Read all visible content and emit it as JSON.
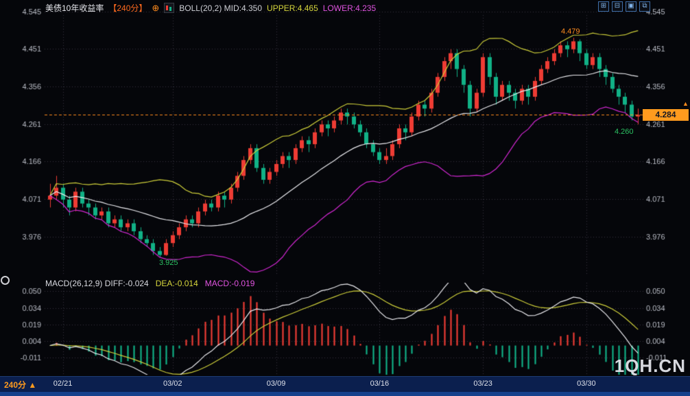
{
  "title_bar": {
    "symbol": "美债10年收益率",
    "period_badge": "【240分】",
    "expand_icon": "⊕",
    "boll": "BOLL(20,2) MID:4.350",
    "upper": "UPPER:4.465",
    "lower": "LOWER:4.235"
  },
  "window_controls": {
    "icons": [
      "⊞",
      "⊟",
      "▣",
      "⧉"
    ]
  },
  "macd_header": {
    "main": "MACD(26,12,9) DIFF:-0.024",
    "dea": "DEA:-0.014",
    "macd": "MACD:-0.019"
  },
  "annotations": {
    "peak": "4.479",
    "trough": "3.925",
    "recent_low": "4.260",
    "last_price": "4.284",
    "arrow_up": "▲"
  },
  "bottom_bar": {
    "period": "240分 ▲"
  },
  "watermark": {
    "text": "1QH.CN"
  },
  "colors": {
    "up": "#ee3c34",
    "down": "#11b186",
    "boll_upper": "#cfd03a",
    "boll_mid": "#ececf0",
    "boll_lower": "#d428d4",
    "diff_line": "#ececf0",
    "dea_line": "#cfd03a",
    "hist_up": "#ee3c34",
    "hist_down": "#11b186",
    "accent": "#ff8c1e",
    "axis_text": "#b9bcc5",
    "grid": "#363640"
  },
  "chart_data": {
    "type": "candlestick+macd",
    "title": "美债10年收益率 240分",
    "main_panel": {
      "ytick_labels": [
        "4.545",
        "4.451",
        "4.356",
        "4.261",
        "4.166",
        "4.071",
        "3.976"
      ],
      "ylim": [
        3.88,
        4.545
      ],
      "boll": {
        "period": 20,
        "k": 2,
        "mid": 4.35,
        "upper": 4.465,
        "lower": 4.235
      },
      "last_price": 4.284,
      "period_high": 4.479,
      "period_low": 3.925,
      "recent_low": 4.26,
      "candles_ohlc": [
        [
          4.07,
          4.11,
          4.05,
          4.08
        ],
        [
          4.08,
          4.13,
          4.07,
          4.1
        ],
        [
          4.1,
          4.11,
          4.05,
          4.07
        ],
        [
          4.07,
          4.08,
          4.03,
          4.05
        ],
        [
          4.05,
          4.1,
          4.04,
          4.09
        ],
        [
          4.09,
          4.1,
          4.05,
          4.06
        ],
        [
          4.06,
          4.07,
          4.03,
          4.05
        ],
        [
          4.05,
          4.06,
          4.02,
          4.03
        ],
        [
          4.03,
          4.05,
          4.02,
          4.04
        ],
        [
          4.04,
          4.05,
          4.0,
          4.01
        ],
        [
          4.01,
          4.03,
          4.0,
          4.02
        ],
        [
          4.02,
          4.03,
          3.99,
          4.0
        ],
        [
          4.0,
          4.02,
          3.99,
          4.01
        ],
        [
          4.01,
          4.02,
          3.98,
          3.99
        ],
        [
          3.99,
          4.0,
          3.96,
          3.97
        ],
        [
          3.97,
          3.98,
          3.95,
          3.96
        ],
        [
          3.96,
          3.97,
          3.93,
          3.94
        ],
        [
          3.94,
          3.95,
          3.925,
          3.93
        ],
        [
          3.93,
          3.97,
          3.928,
          3.96
        ],
        [
          3.96,
          3.99,
          3.95,
          3.98
        ],
        [
          3.98,
          4.01,
          3.97,
          4.0
        ],
        [
          4.0,
          4.03,
          3.99,
          4.02
        ],
        [
          4.02,
          4.03,
          4.0,
          4.01
        ],
        [
          4.01,
          4.05,
          4.0,
          4.04
        ],
        [
          4.04,
          4.07,
          4.03,
          4.06
        ],
        [
          4.06,
          4.07,
          4.04,
          4.05
        ],
        [
          4.05,
          4.09,
          4.04,
          4.08
        ],
        [
          4.08,
          4.09,
          4.05,
          4.07
        ],
        [
          4.07,
          4.11,
          4.06,
          4.1
        ],
        [
          4.1,
          4.14,
          4.09,
          4.13
        ],
        [
          4.13,
          4.18,
          4.12,
          4.17
        ],
        [
          4.17,
          4.21,
          4.16,
          4.2
        ],
        [
          4.2,
          4.21,
          4.14,
          4.15
        ],
        [
          4.15,
          4.16,
          4.11,
          4.12
        ],
        [
          4.12,
          4.15,
          4.11,
          4.14
        ],
        [
          4.14,
          4.17,
          4.13,
          4.16
        ],
        [
          4.16,
          4.19,
          4.15,
          4.18
        ],
        [
          4.18,
          4.19,
          4.15,
          4.17
        ],
        [
          4.17,
          4.21,
          4.16,
          4.2
        ],
        [
          4.2,
          4.23,
          4.19,
          4.22
        ],
        [
          4.22,
          4.23,
          4.19,
          4.21
        ],
        [
          4.21,
          4.25,
          4.2,
          4.24
        ],
        [
          4.24,
          4.27,
          4.23,
          4.26
        ],
        [
          4.26,
          4.27,
          4.23,
          4.25
        ],
        [
          4.25,
          4.28,
          4.24,
          4.27
        ],
        [
          4.27,
          4.3,
          4.26,
          4.29
        ],
        [
          4.29,
          4.3,
          4.26,
          4.28
        ],
        [
          4.28,
          4.29,
          4.25,
          4.26
        ],
        [
          4.26,
          4.27,
          4.23,
          4.24
        ],
        [
          4.24,
          4.25,
          4.2,
          4.21
        ],
        [
          4.21,
          4.22,
          4.18,
          4.19
        ],
        [
          4.19,
          4.2,
          4.16,
          4.17
        ],
        [
          4.17,
          4.2,
          4.16,
          4.18
        ],
        [
          4.18,
          4.22,
          4.17,
          4.21
        ],
        [
          4.21,
          4.26,
          4.2,
          4.25
        ],
        [
          4.25,
          4.26,
          4.22,
          4.24
        ],
        [
          4.24,
          4.29,
          4.23,
          4.28
        ],
        [
          4.28,
          4.32,
          4.27,
          4.31
        ],
        [
          4.31,
          4.32,
          4.28,
          4.3
        ],
        [
          4.3,
          4.35,
          4.29,
          4.34
        ],
        [
          4.34,
          4.39,
          4.33,
          4.38
        ],
        [
          4.38,
          4.43,
          4.37,
          4.42
        ],
        [
          4.42,
          4.45,
          4.4,
          4.44
        ],
        [
          4.44,
          4.45,
          4.38,
          4.4
        ],
        [
          4.4,
          4.41,
          4.34,
          4.36
        ],
        [
          4.36,
          4.37,
          4.28,
          4.3
        ],
        [
          4.3,
          4.35,
          4.29,
          4.34
        ],
        [
          4.34,
          4.44,
          4.33,
          4.43
        ],
        [
          4.43,
          4.44,
          4.36,
          4.38
        ],
        [
          4.38,
          4.39,
          4.31,
          4.33
        ],
        [
          4.33,
          4.37,
          4.32,
          4.36
        ],
        [
          4.36,
          4.37,
          4.32,
          4.34
        ],
        [
          4.34,
          4.35,
          4.3,
          4.32
        ],
        [
          4.32,
          4.36,
          4.31,
          4.35
        ],
        [
          4.35,
          4.36,
          4.31,
          4.33
        ],
        [
          4.33,
          4.38,
          4.32,
          4.37
        ],
        [
          4.37,
          4.41,
          4.36,
          4.4
        ],
        [
          4.4,
          4.43,
          4.39,
          4.42
        ],
        [
          4.42,
          4.45,
          4.41,
          4.44
        ],
        [
          4.44,
          4.47,
          4.43,
          4.46
        ],
        [
          4.46,
          4.47,
          4.43,
          4.45
        ],
        [
          4.45,
          4.479,
          4.44,
          4.47
        ],
        [
          4.47,
          4.475,
          4.42,
          4.44
        ],
        [
          4.44,
          4.45,
          4.4,
          4.41
        ],
        [
          4.41,
          4.44,
          4.4,
          4.43
        ],
        [
          4.43,
          4.44,
          4.38,
          4.4
        ],
        [
          4.4,
          4.41,
          4.36,
          4.38
        ],
        [
          4.38,
          4.39,
          4.34,
          4.35
        ],
        [
          4.35,
          4.36,
          4.31,
          4.33
        ],
        [
          4.33,
          4.34,
          4.29,
          4.31
        ],
        [
          4.31,
          4.32,
          4.27,
          4.28
        ],
        [
          4.28,
          4.3,
          4.26,
          4.284
        ]
      ]
    },
    "macd_panel": {
      "params": [
        26,
        12,
        9
      ],
      "diff": -0.024,
      "dea": -0.014,
      "macd": -0.019,
      "ytick_labels": [
        "0.050",
        "0.034",
        "0.019",
        "0.004",
        "-0.011"
      ]
    },
    "xticks": [
      {
        "i": 2,
        "label": "02/21"
      },
      {
        "i": 19,
        "label": "03/02"
      },
      {
        "i": 35,
        "label": "03/09"
      },
      {
        "i": 51,
        "label": "03/16"
      },
      {
        "i": 67,
        "label": "03/23"
      },
      {
        "i": 83,
        "label": "03/30"
      }
    ]
  }
}
